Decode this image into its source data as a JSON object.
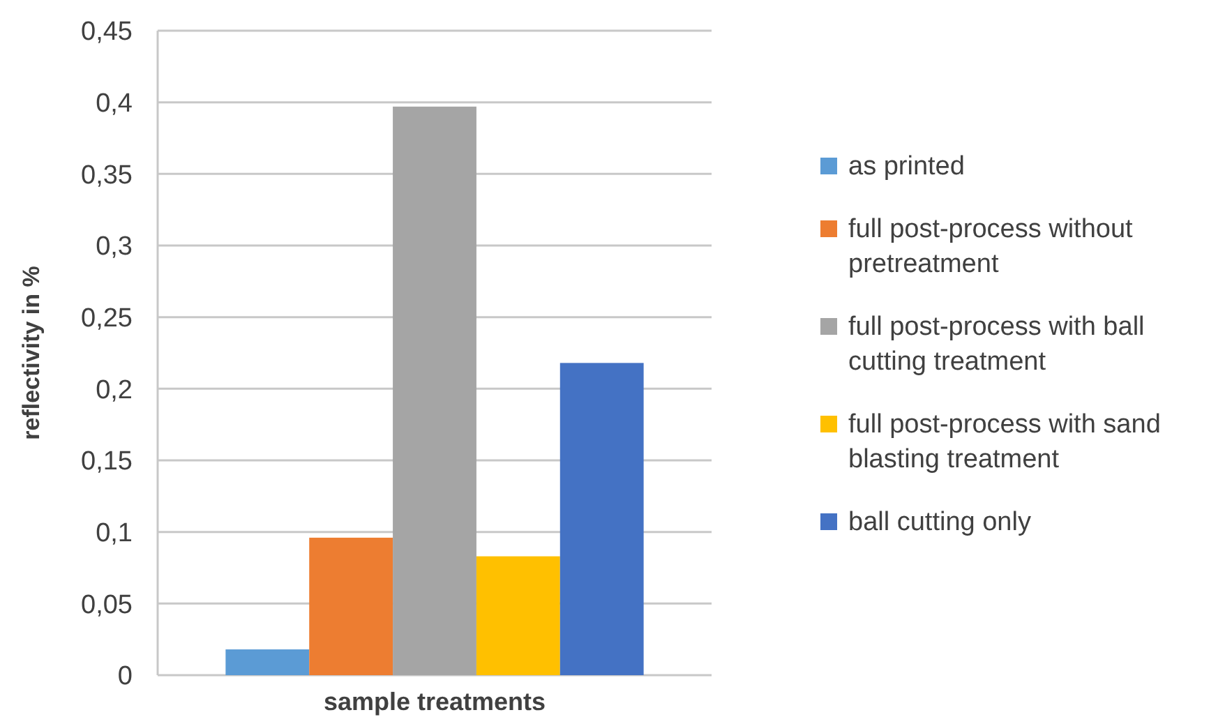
{
  "chart_data": {
    "type": "bar",
    "xlabel": "sample treatments",
    "ylabel": "reflectivity in %",
    "categories": [
      null
    ],
    "series": [
      {
        "name": "as printed",
        "color": "#5b9bd5",
        "values": [
          0.018
        ]
      },
      {
        "name": "full post-process without pretreatment",
        "color": "#ed7d31",
        "values": [
          0.096
        ]
      },
      {
        "name": "full post-process with ball cutting treatment",
        "color": "#a5a5a5",
        "values": [
          0.397
        ]
      },
      {
        "name": "full post-process with sand blasting treatment",
        "color": "#ffc000",
        "values": [
          0.083
        ]
      },
      {
        "name": "ball cutting only",
        "color": "#4472c4",
        "values": [
          0.218
        ]
      }
    ],
    "ylim": [
      0,
      0.45
    ],
    "yticks": [
      0,
      {
        "value": 0.05,
        "label": "0,05"
      },
      {
        "value": 0.1,
        "label": "0,1"
      },
      {
        "value": 0.15,
        "label": "0,15"
      },
      {
        "value": 0.2,
        "label": "0,2"
      },
      {
        "value": 0.25,
        "label": "0,25"
      },
      {
        "value": 0.3,
        "label": "0,3"
      },
      {
        "value": 0.35,
        "label": "0,35"
      },
      {
        "value": 0.4,
        "label": "0,4"
      },
      {
        "value": 0.45,
        "label": "0,45"
      }
    ],
    "grid": "y",
    "legend": "right"
  }
}
